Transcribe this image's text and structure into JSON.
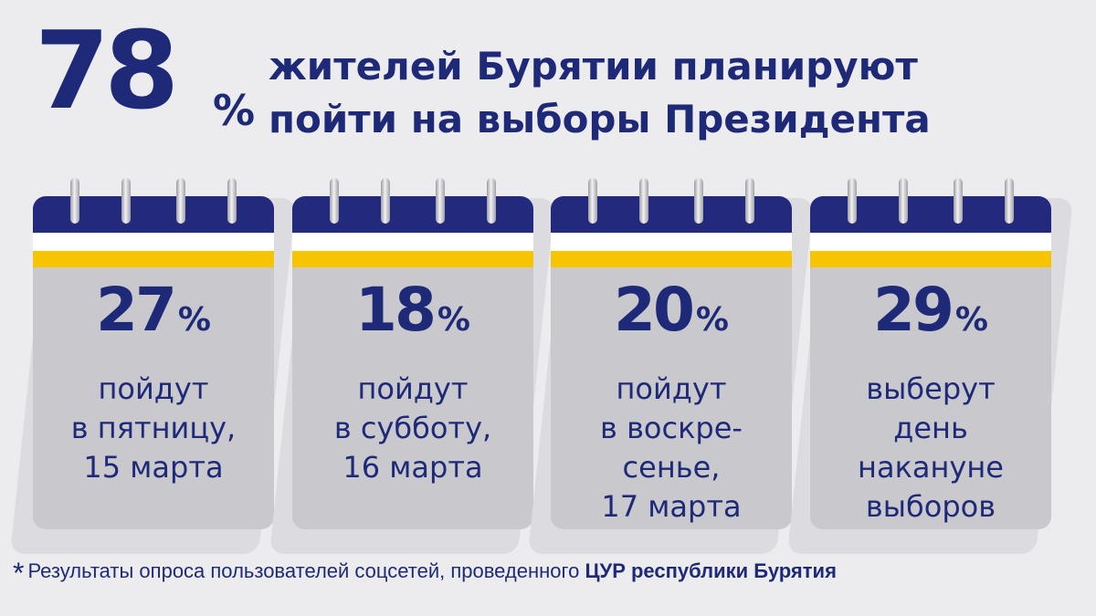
{
  "headline": {
    "percent_number": "78",
    "percent_sign": "%",
    "line1": "жителей Бурятии планируют",
    "line2": "пойти на выборы Президента"
  },
  "colors": {
    "navy": "#232a7e",
    "yellow": "#f6c400",
    "card_body": "#c9c9cd",
    "background": "#ececef"
  },
  "cards": [
    {
      "number": "27",
      "sign": "%",
      "lines": [
        "пойдут",
        "в пятницу,",
        "15 марта"
      ]
    },
    {
      "number": "18",
      "sign": "%",
      "lines": [
        "пойдут",
        "в субботу,",
        "16 марта"
      ]
    },
    {
      "number": "20",
      "sign": "%",
      "lines": [
        "пойдут",
        "в воскре-",
        "сенье,",
        "17 марта"
      ]
    },
    {
      "number": "29",
      "sign": "%",
      "lines": [
        "выберут",
        "день",
        "накануне",
        "выборов"
      ]
    }
  ],
  "footnote": {
    "star": "*",
    "text": "Результаты опроса пользователей соцсетей, проведенного ",
    "bold": "ЦУР республики Бурятия"
  }
}
